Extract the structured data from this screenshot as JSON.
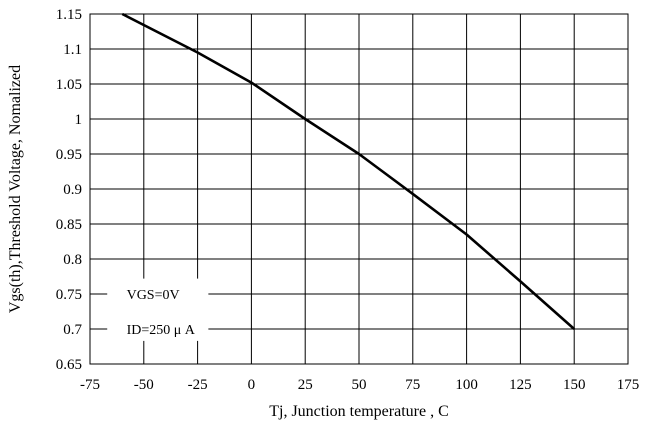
{
  "chart_data": {
    "type": "line",
    "title": "",
    "xlabel": "Tj, Junction temperature , C",
    "ylabel": "Vgs(th),Threshold Voltage, Nomalized",
    "xlim": [
      -75,
      175
    ],
    "ylim": [
      0.65,
      1.15
    ],
    "x_ticks": [
      -75,
      -50,
      -25,
      0,
      25,
      50,
      75,
      100,
      125,
      150,
      175
    ],
    "y_ticks": [
      0.65,
      0.7,
      0.75,
      0.8,
      0.85,
      0.9,
      0.95,
      1.0,
      1.05,
      1.1,
      1.15
    ],
    "x_tick_labels": [
      "-75",
      "-50",
      "-25",
      "0",
      "25",
      "50",
      "75",
      "100",
      "125",
      "150",
      "175"
    ],
    "y_tick_labels": [
      "0.65",
      "0.7",
      "0.75",
      "0.8",
      "0.85",
      "0.9",
      "0.95",
      "1",
      "1.05",
      "1.1",
      "1.15"
    ],
    "grid": true,
    "series": [
      {
        "x": [
          -60,
          -25,
          0,
          25,
          50,
          75,
          100,
          125,
          150
        ],
        "y": [
          1.15,
          1.095,
          1.052,
          1.0,
          0.95,
          0.893,
          0.835,
          0.768,
          0.7
        ],
        "color": "#000000"
      }
    ],
    "annotations": [
      "VGS=0V",
      "ID=250 μ A"
    ]
  }
}
